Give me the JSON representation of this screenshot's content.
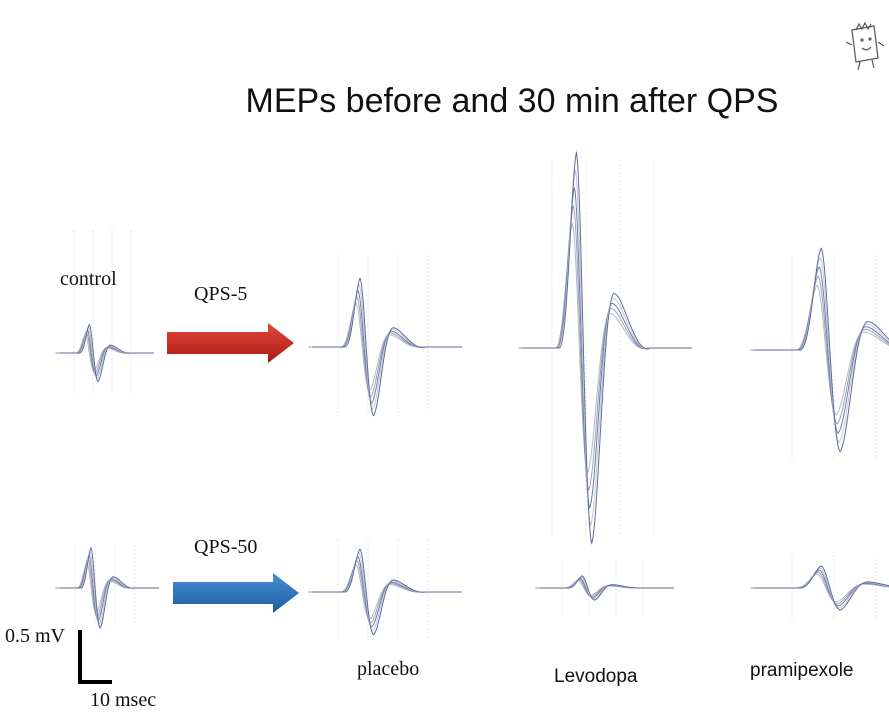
{
  "title": "MEPs before and 30 min after QPS",
  "conditions": {
    "baseline": "control",
    "drugs": [
      "placebo",
      "Levodopa",
      "pramipexole"
    ]
  },
  "protocols": [
    "QPS-5",
    "QPS-50"
  ],
  "scale_bar": {
    "amplitude": "0.5 mV",
    "time": "10 msec"
  }
}
